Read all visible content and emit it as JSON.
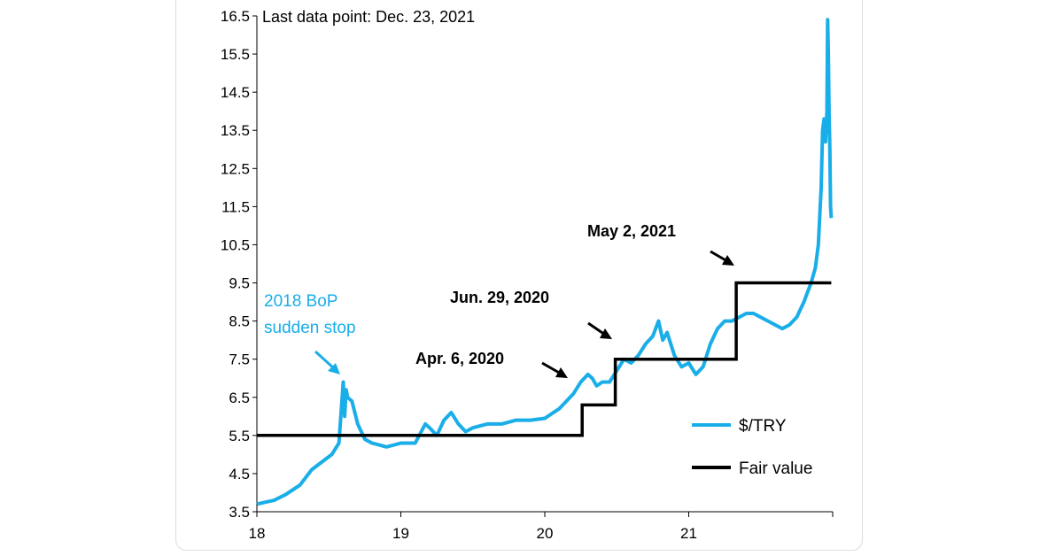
{
  "chart_data": {
    "type": "line",
    "note": "Last data point: Dec. 23, 2021",
    "xlabel": "",
    "ylabel": "",
    "x_ticks": [
      "18",
      "19",
      "20",
      "21"
    ],
    "xlim": [
      2018.0,
      2022.0
    ],
    "y_ticks": [
      "3.5",
      "4.5",
      "5.5",
      "6.5",
      "7.5",
      "8.5",
      "9.5",
      "10.5",
      "11.5",
      "12.5",
      "13.5",
      "14.5",
      "15.5",
      "16.5"
    ],
    "ylim": [
      3.5,
      16.5
    ],
    "legend_position": "bottom-right",
    "series": [
      {
        "name": "$/TRY",
        "color": "#19aee8",
        "x": [
          2018.0,
          2018.06,
          2018.12,
          2018.2,
          2018.3,
          2018.38,
          2018.45,
          2018.52,
          2018.57,
          2018.6,
          2018.61,
          2018.62,
          2018.63,
          2018.66,
          2018.7,
          2018.75,
          2018.8,
          2018.85,
          2018.9,
          2019.0,
          2019.1,
          2019.17,
          2019.2,
          2019.25,
          2019.3,
          2019.35,
          2019.4,
          2019.45,
          2019.5,
          2019.6,
          2019.7,
          2019.8,
          2019.9,
          2020.0,
          2020.1,
          2020.15,
          2020.2,
          2020.25,
          2020.3,
          2020.33,
          2020.36,
          2020.4,
          2020.45,
          2020.5,
          2020.55,
          2020.6,
          2020.65,
          2020.7,
          2020.75,
          2020.79,
          2020.82,
          2020.85,
          2020.9,
          2020.95,
          2021.0,
          2021.05,
          2021.1,
          2021.15,
          2021.2,
          2021.25,
          2021.3,
          2021.35,
          2021.4,
          2021.45,
          2021.5,
          2021.55,
          2021.6,
          2021.65,
          2021.7,
          2021.75,
          2021.8,
          2021.85,
          2021.88,
          2021.9,
          2021.92,
          2021.93,
          2021.94,
          2021.95,
          2021.96,
          2021.965,
          2021.97,
          2021.975,
          2021.98,
          2021.985,
          2021.99
        ],
        "values": [
          3.7,
          3.75,
          3.8,
          3.95,
          4.2,
          4.6,
          4.8,
          5.0,
          5.3,
          6.9,
          6.0,
          6.7,
          6.5,
          6.4,
          5.8,
          5.4,
          5.3,
          5.25,
          5.2,
          5.3,
          5.3,
          5.8,
          5.7,
          5.5,
          5.9,
          6.1,
          5.8,
          5.6,
          5.7,
          5.8,
          5.8,
          5.9,
          5.9,
          5.95,
          6.2,
          6.4,
          6.6,
          6.9,
          7.1,
          7.0,
          6.8,
          6.9,
          6.9,
          7.2,
          7.5,
          7.4,
          7.6,
          7.9,
          8.1,
          8.5,
          8.0,
          8.2,
          7.6,
          7.3,
          7.4,
          7.1,
          7.3,
          7.9,
          8.3,
          8.5,
          8.5,
          8.6,
          8.7,
          8.7,
          8.6,
          8.5,
          8.4,
          8.3,
          8.4,
          8.6,
          9.0,
          9.5,
          9.9,
          10.5,
          12.0,
          13.5,
          13.8,
          13.2,
          14.0,
          16.4,
          15.5,
          14.0,
          13.0,
          11.5,
          11.2
        ]
      },
      {
        "name": "Fair value",
        "color": "#000000",
        "x": [
          2018.0,
          2020.26,
          2020.26,
          2020.49,
          2020.49,
          2021.33,
          2021.33,
          2021.99
        ],
        "values": [
          5.5,
          5.5,
          6.3,
          6.3,
          7.5,
          7.5,
          9.5,
          9.5
        ]
      }
    ],
    "annotations": {
      "bop_line1": "2018  BoP",
      "bop_line2": "sudden stop",
      "apr": "Apr. 6, 2020",
      "jun": "Jun. 29, 2020",
      "may": "May 2, 2021"
    }
  }
}
